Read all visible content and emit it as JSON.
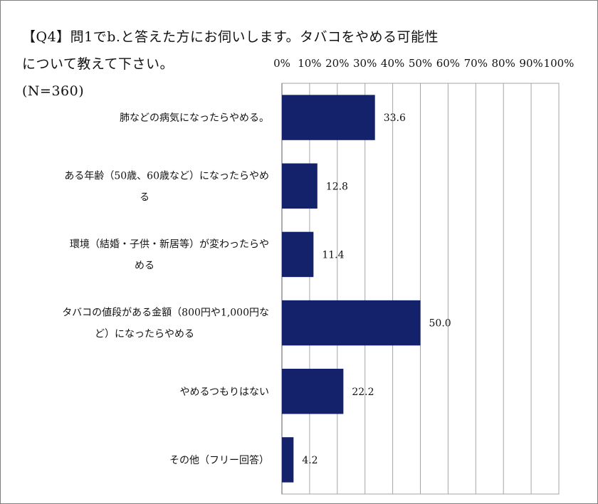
{
  "chart_data": {
    "type": "bar",
    "orientation": "horizontal",
    "title_lines": [
      "【Q4】問1でb.と答えた方にお伺いします。タバコをやめる可能性",
      "について教えて下さい。",
      "(N=360)"
    ],
    "categories": [
      [
        "肺などの病気になったらやめる。"
      ],
      [
        "ある年齢（50歳、60歳など）になったらやめ",
        "る"
      ],
      [
        "環境（結婚・子供・新居等）が変わったらや",
        "める"
      ],
      [
        "タバコの値段がある金額（800円や1,000円な",
        "ど）になったらやめる"
      ],
      [
        "やめるつもりはない"
      ],
      [
        "その他（フリー回答）"
      ]
    ],
    "values": [
      33.6,
      12.8,
      11.4,
      50.0,
      22.2,
      4.2
    ],
    "value_labels": [
      "33.6",
      "12.8",
      "11.4",
      "50.0",
      "22.2",
      "4.2"
    ],
    "x_ticks": [
      "0%",
      "10%",
      "20%",
      "30%",
      "40%",
      "50%",
      "60%",
      "70%",
      "80%",
      "90%",
      "100%"
    ],
    "xlim": [
      0,
      100
    ],
    "grid": true,
    "bar_color": "#14216b",
    "grid_color": "#a6a6a6"
  }
}
